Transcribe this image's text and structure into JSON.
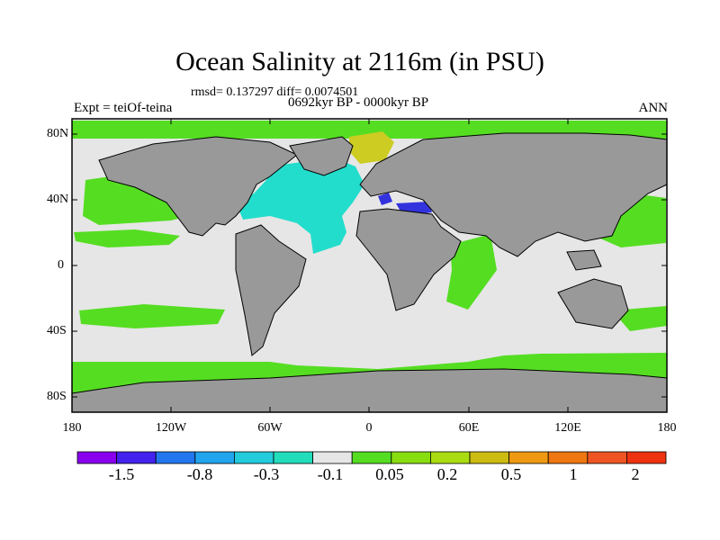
{
  "header": {
    "title": "Ocean Salinity at 2116m (in PSU)",
    "stats_line": "rmsd= 0.137297 diff= 0.0074501",
    "period_line": "0692kyr BP - 0000kyr BP",
    "experiment": "Expt = teiOf-teina",
    "season": "ANN"
  },
  "map": {
    "lat_labels": [
      "80N",
      "40N",
      "0",
      "40S",
      "80S"
    ],
    "lon_labels": [
      "180",
      "120W",
      "60W",
      "0",
      "60E",
      "120E",
      "180"
    ],
    "colors": {
      "land": "#999999",
      "ocean_neutral": "#e6e6e6",
      "green": "#55dd22",
      "yellow_green": "#aadd11",
      "olive_yellow": "#cccc22",
      "cyan": "#22ddcc",
      "blue": "#3333dd",
      "purple": "#7722ee",
      "coast": "#000000",
      "frame": "#000000"
    }
  },
  "colorbar": {
    "boxes": [
      "#8800ee",
      "#4422ee",
      "#2277ee",
      "#22a4ee",
      "#22ccdd",
      "#22ddbb",
      "#e6e6e6",
      "#55dd22",
      "#88dd11",
      "#aadd11",
      "#ccbb11",
      "#ee9911",
      "#ee7711",
      "#ee5522",
      "#ee3311"
    ],
    "labels": [
      "-1.5",
      "-0.8",
      "-0.3",
      "-0.1",
      "0.05",
      "0.2",
      "0.5",
      "1",
      "2"
    ]
  }
}
